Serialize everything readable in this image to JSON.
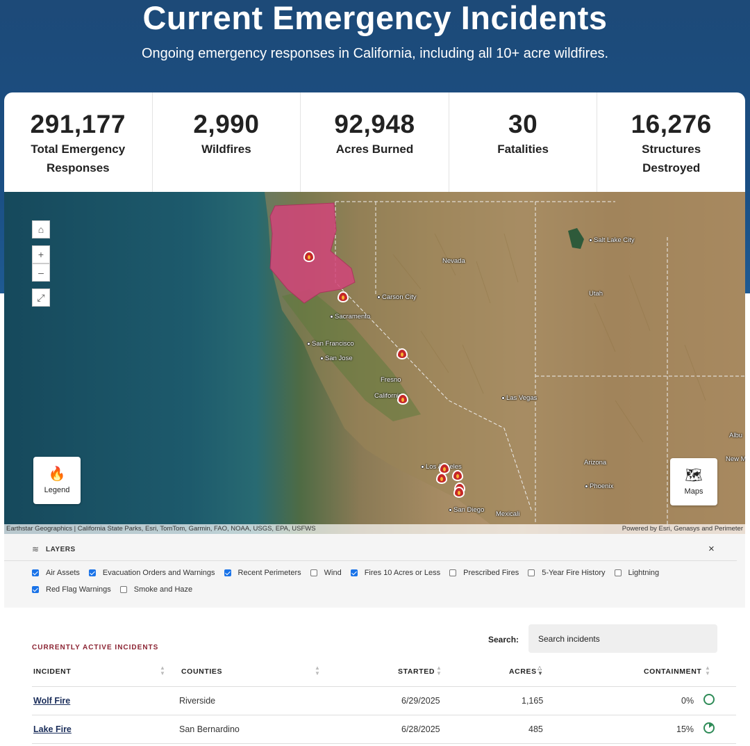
{
  "hero": {
    "title": "Current Emergency Incidents",
    "subtitle": "Ongoing emergency responses in California, including all 10+ acre wildfires."
  },
  "stats": [
    {
      "value": "291,177",
      "label": "Total Emergency Responses"
    },
    {
      "value": "2,990",
      "label": "Wildfires"
    },
    {
      "value": "92,948",
      "label": "Acres Burned"
    },
    {
      "value": "30",
      "label": "Fatalities"
    },
    {
      "value": "16,276",
      "label": "Structures Destroyed"
    }
  ],
  "map": {
    "home_icon": "home-icon",
    "zoom_in": "+",
    "zoom_out": "–",
    "legend_label": "Legend",
    "maps_label": "Maps",
    "cities": [
      "Salt Lake City",
      "Nevada",
      "Carson City",
      "Utah",
      "Sacramento",
      "San Francisco",
      "San Jose",
      "Fresno",
      "California",
      "Las Vegas",
      "Arizona",
      "Los Angeles",
      "Phoenix",
      "San Diego",
      "Mexicali",
      "Albu",
      "New Me"
    ],
    "attribution_left": "Earthstar Geographics | California State Parks, Esri, TomTom, Garmin, FAO, NOAA, USGS, EPA, USFWS",
    "attribution_right": "Powered by Esri, Genasys and Perimeter",
    "colors": {
      "perimeter": "#d2457a",
      "fire": "#c42828"
    }
  },
  "layers": {
    "title": "LAYERS",
    "close": "×",
    "items": [
      {
        "label": "Air Assets",
        "checked": true
      },
      {
        "label": "Evacuation Orders and Warnings",
        "checked": true
      },
      {
        "label": "Recent Perimeters",
        "checked": true
      },
      {
        "label": "Wind",
        "checked": false
      },
      {
        "label": "Fires 10 Acres or Less",
        "checked": true
      },
      {
        "label": "Prescribed Fires",
        "checked": false
      },
      {
        "label": "5-Year Fire History",
        "checked": false
      },
      {
        "label": "Lightning",
        "checked": false
      },
      {
        "label": "Red Flag Warnings",
        "checked": true
      },
      {
        "label": "Smoke and Haze",
        "checked": false
      }
    ]
  },
  "incidents": {
    "title": "CURRENTLY ACTIVE INCIDENTS",
    "search_label": "Search:",
    "search_placeholder": "Search incidents",
    "columns": [
      "INCIDENT",
      "COUNTIES",
      "STARTED",
      "ACRES",
      "CONTAINMENT"
    ],
    "rows": [
      {
        "name": "Wolf Fire",
        "county": "Riverside",
        "started": "6/29/2025",
        "acres": "1,165",
        "containment": "0%",
        "containment_fraction": 0.0
      },
      {
        "name": "Lake Fire",
        "county": "San Bernardino",
        "started": "6/28/2025",
        "acres": "485",
        "containment": "15%",
        "containment_fraction": 0.15
      }
    ]
  }
}
